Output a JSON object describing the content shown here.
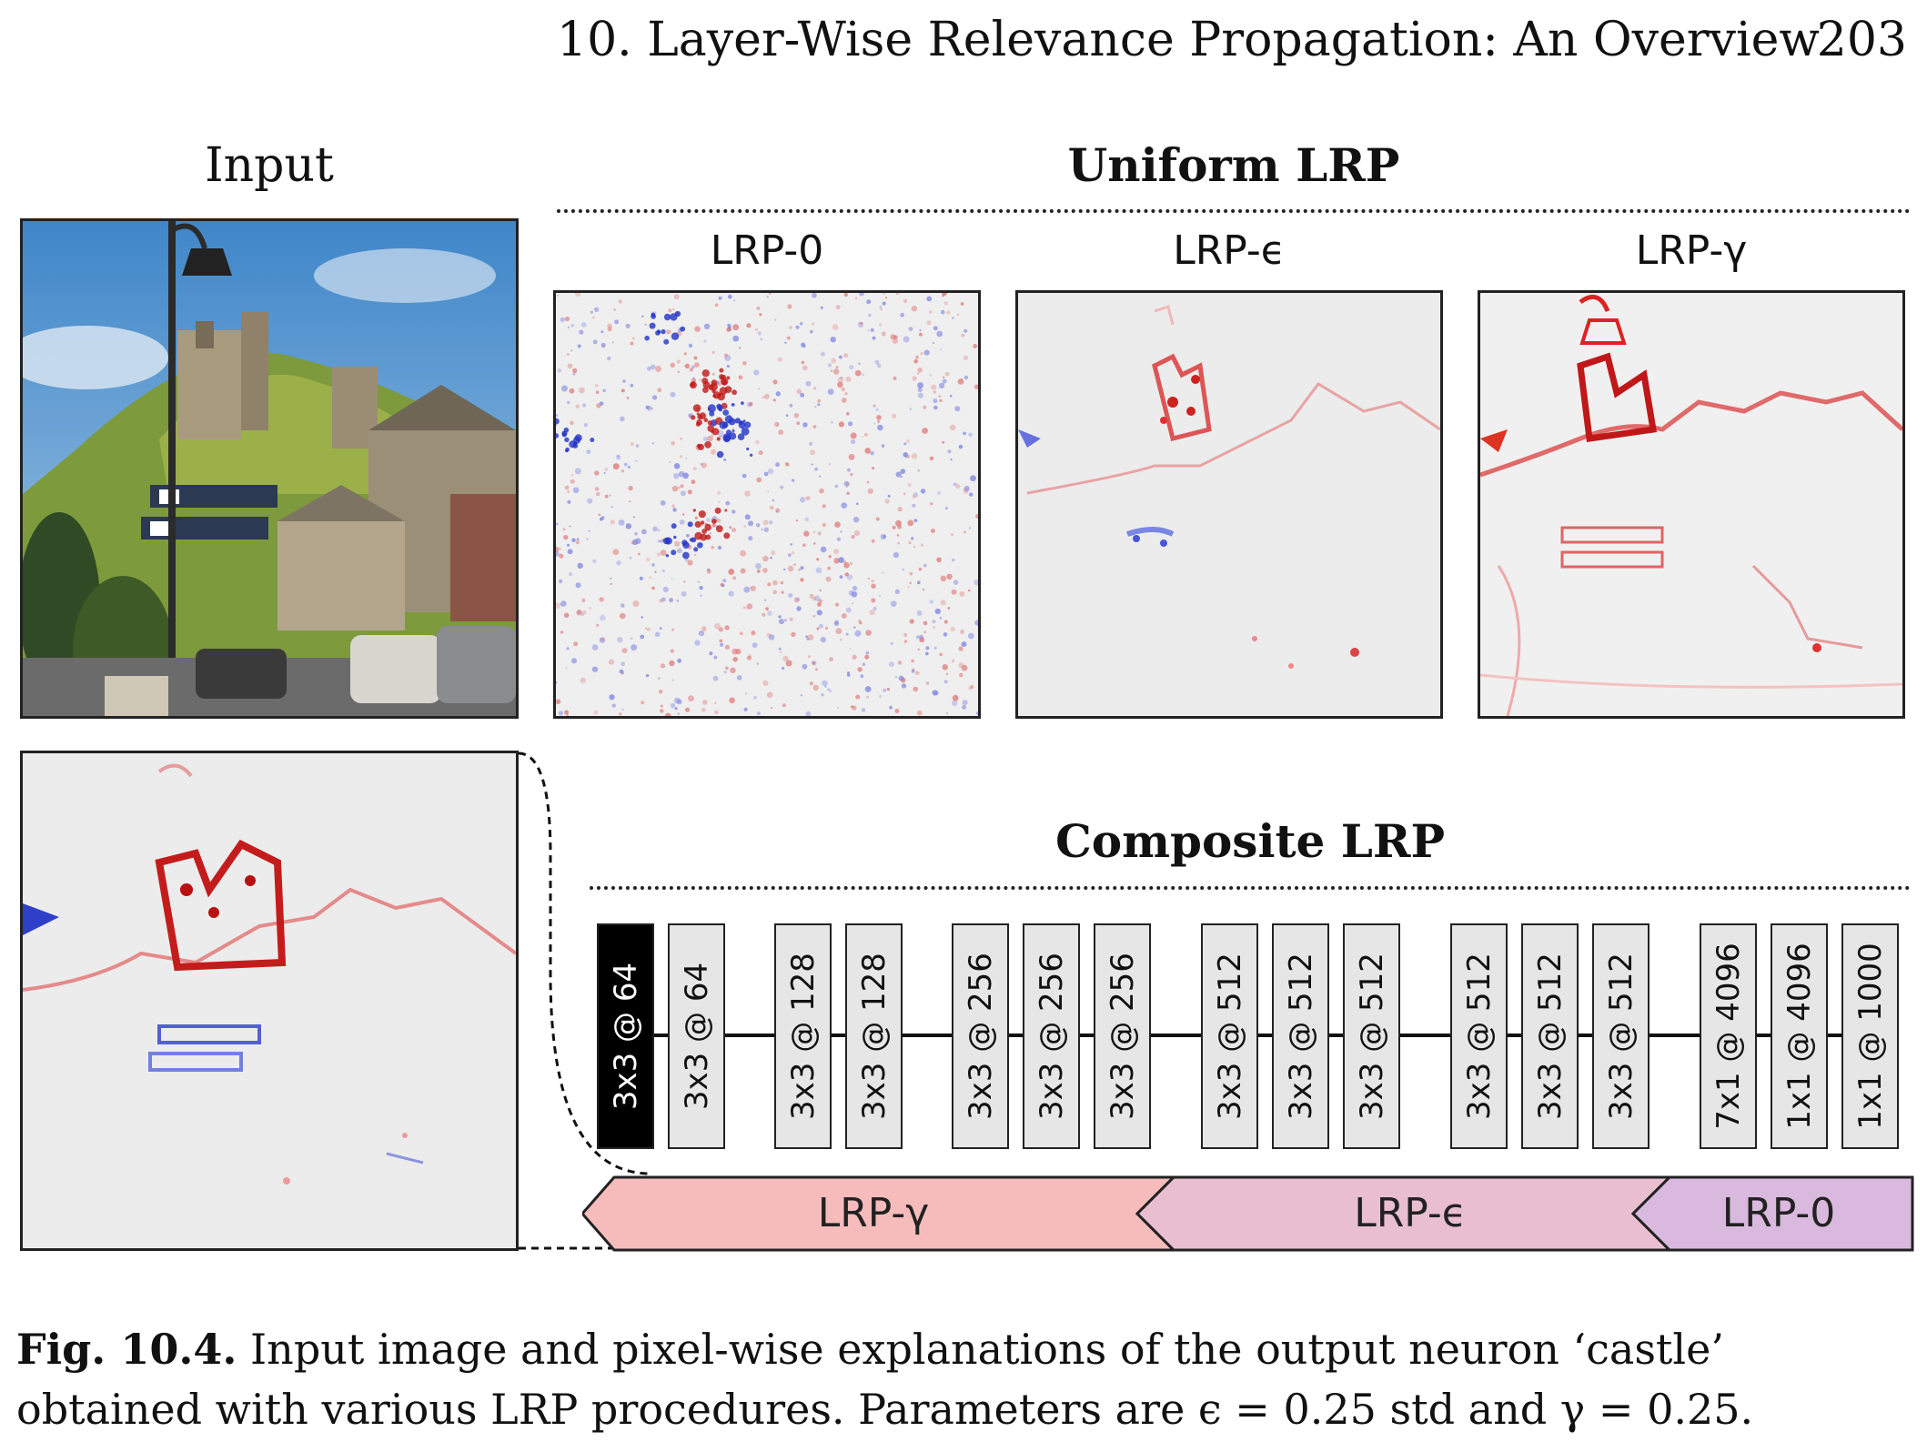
{
  "header": {
    "chapter_title": "10. Layer-Wise Relevance Propagation: An Overview",
    "page_number": "203"
  },
  "input_panel": {
    "label": "Input"
  },
  "uniform": {
    "title": "Uniform LRP",
    "panels": [
      {
        "label": "LRP-0"
      },
      {
        "label": "LRP-ϵ"
      },
      {
        "label": "LRP-γ"
      }
    ]
  },
  "composite": {
    "title": "Composite LRP",
    "layers": [
      "3x3 @ 64",
      "3x3 @ 64",
      "3x3 @ 128",
      "3x3 @ 128",
      "3x3 @ 256",
      "3x3 @ 256",
      "3x3 @ 256",
      "3x3 @ 512",
      "3x3 @ 512",
      "3x3 @ 512",
      "3x3 @ 512",
      "3x3 @ 512",
      "3x3 @ 512",
      "7x1 @ 4096",
      "1x1 @ 4096",
      "1x1 @ 1000"
    ],
    "rules": [
      {
        "label": "LRP-γ",
        "color": "#f6bcbc"
      },
      {
        "label": "LRP-ϵ",
        "color": "#e9bfcf"
      },
      {
        "label": "LRP-0",
        "color": "#dab9de"
      }
    ]
  },
  "caption": {
    "fig_label": "Fig. 10.4.",
    "text": "Input image and pixel-wise explanations of the output neuron ‘castle’ obtained with various LRP procedures. Parameters are ϵ = 0.25 std and γ = 0.25."
  }
}
